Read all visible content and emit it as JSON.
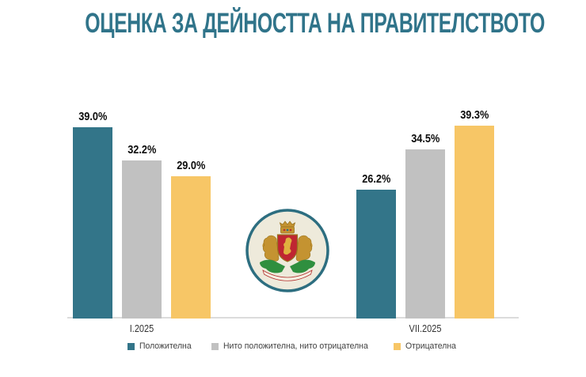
{
  "title": "ОЦЕНКА ЗА ДЕЙНОСТТА НА ПРАВИТЕЛСТВОТО",
  "colors": {
    "title": "#30748a",
    "axis_line": "#dcdcdc",
    "value_label": "#0d0d0d",
    "emblem_ring": "#2d6e80",
    "emblem_background": "#eeeadb"
  },
  "emblem": {
    "icon": "bulgaria-coat-of-arms-icon"
  },
  "chart_data": {
    "type": "bar",
    "title": "ОЦЕНКА ЗА ДЕЙНОСТТА НА ПРАВИТЕЛСТВОТО",
    "categories": [
      "I.2025",
      "VII.2025"
    ],
    "series": [
      {
        "key": "positive",
        "name": "Положителна",
        "color": "#337589",
        "values": [
          39.0,
          26.2
        ],
        "labels": [
          "39.0%",
          "26.2%"
        ]
      },
      {
        "key": "neutral",
        "name": "Нито положителна, нито отрицателна",
        "color": "#c1c1c1",
        "values": [
          32.2,
          34.5
        ],
        "labels": [
          "32.2%",
          "34.5%"
        ]
      },
      {
        "key": "negative",
        "name": "Отрицателна",
        "color": "#f7c666",
        "values": [
          29.0,
          39.3
        ],
        "labels": [
          "29.0%",
          "39.3%"
        ]
      }
    ],
    "ylim": [
      0,
      43.5
    ],
    "grid": false,
    "legend_position": "bottom",
    "value_label_format": "0.0%"
  }
}
